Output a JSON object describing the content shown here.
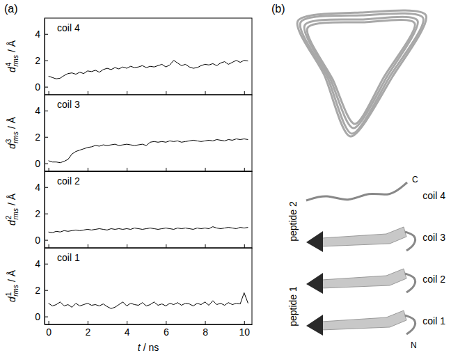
{
  "panels": [
    {
      "label": "(a)"
    },
    {
      "label": "(b)"
    }
  ],
  "structure": {
    "peptides": [
      "peptide 2",
      "peptide 1"
    ],
    "coils": [
      "coil 4",
      "coil 3",
      "coil 2",
      "coil 1"
    ],
    "termini": [
      "N",
      "C"
    ]
  },
  "chart_data": [
    {
      "type": "line",
      "title": "coil 4",
      "color": "#000000",
      "ylabel": {
        "symbol": "d",
        "superscript": "4",
        "subscript": "rms",
        "unit": "/ Å"
      },
      "xlim": [
        -0.2,
        10.4
      ],
      "ylim": [
        -0.6,
        5.2
      ],
      "xticks": [
        0,
        2,
        4,
        6,
        8,
        10
      ],
      "yticks": [
        0,
        2,
        4
      ],
      "tick_labels": "y",
      "x": [
        0,
        0.2,
        0.4,
        0.6,
        0.8,
        1,
        1.2,
        1.4,
        1.6,
        1.8,
        2,
        2.2,
        2.4,
        2.6,
        2.8,
        3,
        3.2,
        3.4,
        3.6,
        3.8,
        4,
        4.2,
        4.4,
        4.6,
        4.8,
        5,
        5.2,
        5.4,
        5.6,
        5.8,
        6,
        6.2,
        6.4,
        6.6,
        6.8,
        7,
        7.2,
        7.4,
        7.6,
        7.8,
        8,
        8.2,
        8.4,
        8.6,
        8.8,
        9,
        9.2,
        9.4,
        9.6,
        9.8,
        10,
        10.2
      ],
      "values": [
        0.8,
        0.7,
        0.6,
        0.65,
        0.85,
        1.0,
        1.05,
        0.95,
        1.1,
        1.0,
        1.2,
        1.15,
        1.25,
        1.1,
        1.3,
        1.4,
        1.3,
        1.45,
        1.35,
        1.5,
        1.4,
        1.55,
        1.45,
        1.5,
        1.6,
        1.45,
        1.55,
        1.5,
        1.6,
        1.7,
        1.5,
        1.65,
        2.0,
        1.8,
        1.6,
        1.7,
        1.5,
        1.4,
        1.45,
        1.6,
        1.7,
        1.65,
        1.75,
        1.6,
        1.8,
        1.9,
        1.7,
        1.85,
        2.0,
        1.85,
        2.0,
        1.95
      ]
    },
    {
      "type": "line",
      "title": "coil 3",
      "color": "#000000",
      "ylabel": {
        "symbol": "d",
        "superscript": "3",
        "subscript": "rms",
        "unit": "/ Å"
      },
      "xlim": [
        -0.2,
        10.4
      ],
      "ylim": [
        -0.6,
        5.2
      ],
      "xticks": [
        0,
        2,
        4,
        6,
        8,
        10
      ],
      "yticks": [
        0,
        2,
        4
      ],
      "tick_labels": "y",
      "x": [
        0,
        0.2,
        0.4,
        0.6,
        0.8,
        1,
        1.2,
        1.4,
        1.6,
        1.8,
        2,
        2.2,
        2.4,
        2.6,
        2.8,
        3,
        3.2,
        3.4,
        3.6,
        3.8,
        4,
        4.2,
        4.4,
        4.6,
        4.8,
        5,
        5.2,
        5.4,
        5.6,
        5.8,
        6,
        6.2,
        6.4,
        6.6,
        6.8,
        7,
        7.2,
        7.4,
        7.6,
        7.8,
        8,
        8.2,
        8.4,
        8.6,
        8.8,
        9,
        9.2,
        9.4,
        9.6,
        9.8,
        10,
        10.2
      ],
      "values": [
        0.2,
        0.1,
        0.1,
        0.05,
        0.15,
        0.3,
        0.7,
        0.9,
        1.0,
        1.1,
        1.2,
        1.25,
        1.35,
        1.3,
        1.4,
        1.35,
        1.4,
        1.45,
        1.35,
        1.4,
        1.45,
        1.4,
        1.35,
        1.4,
        1.45,
        1.35,
        1.6,
        1.65,
        1.6,
        1.65,
        1.6,
        1.7,
        1.65,
        1.7,
        1.6,
        1.65,
        1.7,
        1.75,
        1.7,
        1.65,
        1.7,
        1.75,
        1.7,
        1.8,
        1.75,
        1.7,
        1.8,
        1.75,
        1.85,
        1.8,
        1.85,
        1.8
      ]
    },
    {
      "type": "line",
      "title": "coil 2",
      "color": "#000000",
      "ylabel": {
        "symbol": "d",
        "superscript": "2",
        "subscript": "rms",
        "unit": "/ Å"
      },
      "xlim": [
        -0.2,
        10.4
      ],
      "ylim": [
        -0.6,
        5.2
      ],
      "xticks": [
        0,
        2,
        4,
        6,
        8,
        10
      ],
      "yticks": [
        0,
        2,
        4
      ],
      "tick_labels": "y",
      "x": [
        0,
        0.2,
        0.4,
        0.6,
        0.8,
        1,
        1.2,
        1.4,
        1.6,
        1.8,
        2,
        2.2,
        2.4,
        2.6,
        2.8,
        3,
        3.2,
        3.4,
        3.6,
        3.8,
        4,
        4.2,
        4.4,
        4.6,
        4.8,
        5,
        5.2,
        5.4,
        5.6,
        5.8,
        6,
        6.2,
        6.4,
        6.6,
        6.8,
        7,
        7.2,
        7.4,
        7.6,
        7.8,
        8,
        8.2,
        8.4,
        8.6,
        8.8,
        9,
        9.2,
        9.4,
        9.6,
        9.8,
        10,
        10.2
      ],
      "values": [
        0.6,
        0.55,
        0.65,
        0.6,
        0.7,
        0.65,
        0.7,
        0.75,
        0.7,
        0.75,
        0.8,
        0.75,
        0.8,
        0.85,
        0.8,
        0.75,
        0.85,
        0.8,
        0.85,
        0.8,
        0.85,
        0.8,
        0.9,
        0.85,
        0.8,
        0.85,
        0.9,
        0.85,
        0.8,
        0.85,
        0.9,
        0.85,
        0.8,
        0.9,
        0.85,
        0.9,
        0.85,
        0.8,
        0.9,
        0.85,
        0.9,
        0.85,
        1.0,
        0.9,
        0.85,
        0.9,
        0.95,
        0.9,
        0.85,
        0.95,
        0.9,
        0.95
      ]
    },
    {
      "type": "line",
      "title": "coil 1",
      "color": "#000000",
      "ylabel": {
        "symbol": "d",
        "superscript": "1",
        "subscript": "rms",
        "unit": "/ Å"
      },
      "xlabel": {
        "symbol": "t",
        "unit": "/ ns"
      },
      "xlim": [
        -0.2,
        10.4
      ],
      "ylim": [
        -0.6,
        5.2
      ],
      "xticks": [
        0,
        2,
        4,
        6,
        8,
        10
      ],
      "yticks": [
        0,
        2,
        4
      ],
      "x": [
        0,
        0.2,
        0.4,
        0.6,
        0.8,
        1,
        1.2,
        1.4,
        1.6,
        1.8,
        2,
        2.2,
        2.4,
        2.6,
        2.8,
        3,
        3.2,
        3.4,
        3.6,
        3.8,
        4,
        4.2,
        4.4,
        4.6,
        4.8,
        5,
        5.2,
        5.4,
        5.6,
        5.8,
        6,
        6.2,
        6.4,
        6.6,
        6.8,
        7,
        7.2,
        7.4,
        7.6,
        7.8,
        8,
        8.2,
        8.4,
        8.6,
        8.8,
        9,
        9.2,
        9.4,
        9.6,
        9.8,
        10,
        10.2
      ],
      "values": [
        1.0,
        0.8,
        0.9,
        1.1,
        0.8,
        0.9,
        0.7,
        1.0,
        0.8,
        0.9,
        1.0,
        0.85,
        0.9,
        0.8,
        0.95,
        0.75,
        0.6,
        0.7,
        0.9,
        1.1,
        0.8,
        1.0,
        0.9,
        0.85,
        1.05,
        0.8,
        0.9,
        1.1,
        0.85,
        0.95,
        0.8,
        1.0,
        0.9,
        1.05,
        0.85,
        1.0,
        0.95,
        0.8,
        1.0,
        0.9,
        1.1,
        0.85,
        1.2,
        0.9,
        1.0,
        0.85,
        1.05,
        0.9,
        1.0,
        0.95,
        1.8,
        1.0
      ]
    }
  ]
}
